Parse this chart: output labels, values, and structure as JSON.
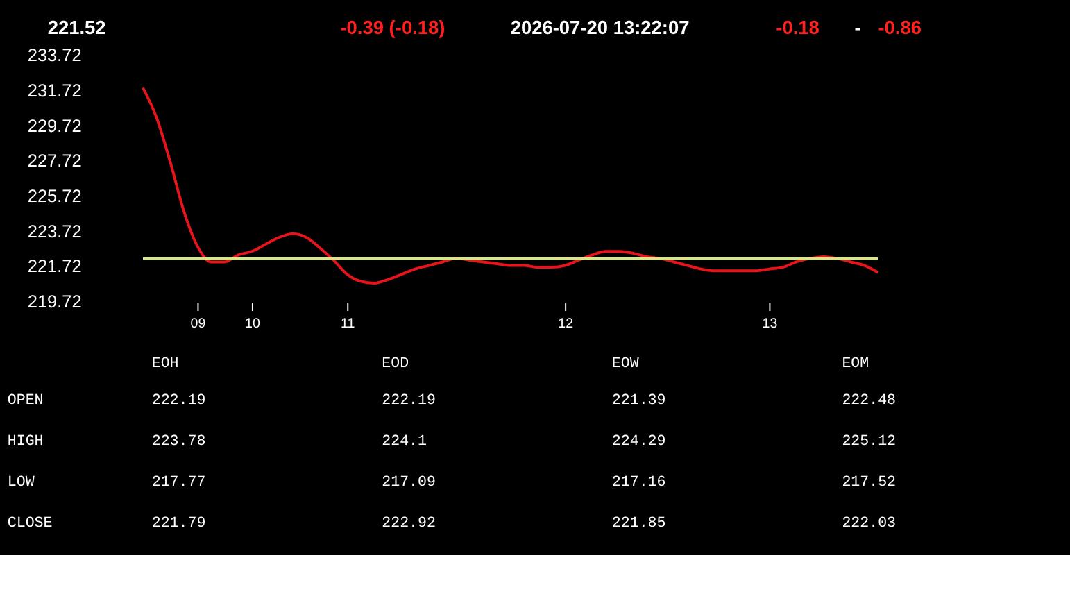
{
  "chart_data": [
    {
      "type": "line",
      "title": "221.52",
      "annotations": [
        "-0.39  (-0.18)",
        "2026-07-20   13:22:07",
        "-0.18",
        "-",
        "-0.86"
      ],
      "categories": [
        null,
        null,
        null,
        null,
        "09",
        null,
        null,
        null,
        "10",
        null,
        null,
        null,
        null,
        null,
        null,
        "11",
        null,
        null,
        null,
        null,
        null,
        null,
        null,
        null,
        null,
        null,
        null,
        null,
        null,
        null,
        null,
        "12",
        null,
        null,
        null,
        null,
        null,
        null,
        null,
        null,
        null,
        null,
        null,
        null,
        null,
        null,
        "13",
        null,
        null,
        null,
        null,
        null,
        null,
        null,
        null
      ],
      "series": [
        {
          "color": "#e8141b",
          "values": [
            231.9,
            230.2,
            227.7,
            224.9,
            222.9,
            222.0,
            222.0,
            222.4,
            222.6,
            223.0,
            223.4,
            223.6,
            223.4,
            222.8,
            222.1,
            221.3,
            220.9,
            220.8,
            221.0,
            221.3,
            221.6,
            221.8,
            222.0,
            222.2,
            222.1,
            222.0,
            221.9,
            221.8,
            221.8,
            221.7,
            221.7,
            221.8,
            222.1,
            222.4,
            222.6,
            222.6,
            222.5,
            222.3,
            222.2,
            222.0,
            221.8,
            221.6,
            221.5,
            221.5,
            221.5,
            221.5,
            221.6,
            221.7,
            222.0,
            222.2,
            222.3,
            222.2,
            222.0,
            221.8,
            221.4
          ]
        }
      ],
      "ylim": [
        219.72,
        233.72
      ],
      "yticks": [
        219.72,
        221.72,
        223.72,
        225.72,
        227.72,
        229.72,
        231.72,
        233.72
      ],
      "ref_lines": [
        {
          "axis": "y",
          "value": 222.19,
          "color": "#d8e68a"
        }
      ],
      "grid": false,
      "legend": false,
      "marker": "none"
    },
    {
      "type": "heatmap",
      "categories": [
        "EOH",
        "EOD",
        "EOW",
        "EOM"
      ],
      "y_categories": [
        "OPEN",
        "HIGH",
        "LOW",
        "CLOSE"
      ],
      "cells": [
        [
          222.19,
          222.19,
          221.39,
          222.48
        ],
        [
          223.78,
          224.1,
          224.29,
          225.12
        ],
        [
          217.77,
          217.09,
          217.16,
          217.52
        ],
        [
          221.79,
          222.92,
          221.85,
          222.03
        ]
      ],
      "data_labels": true
    }
  ]
}
